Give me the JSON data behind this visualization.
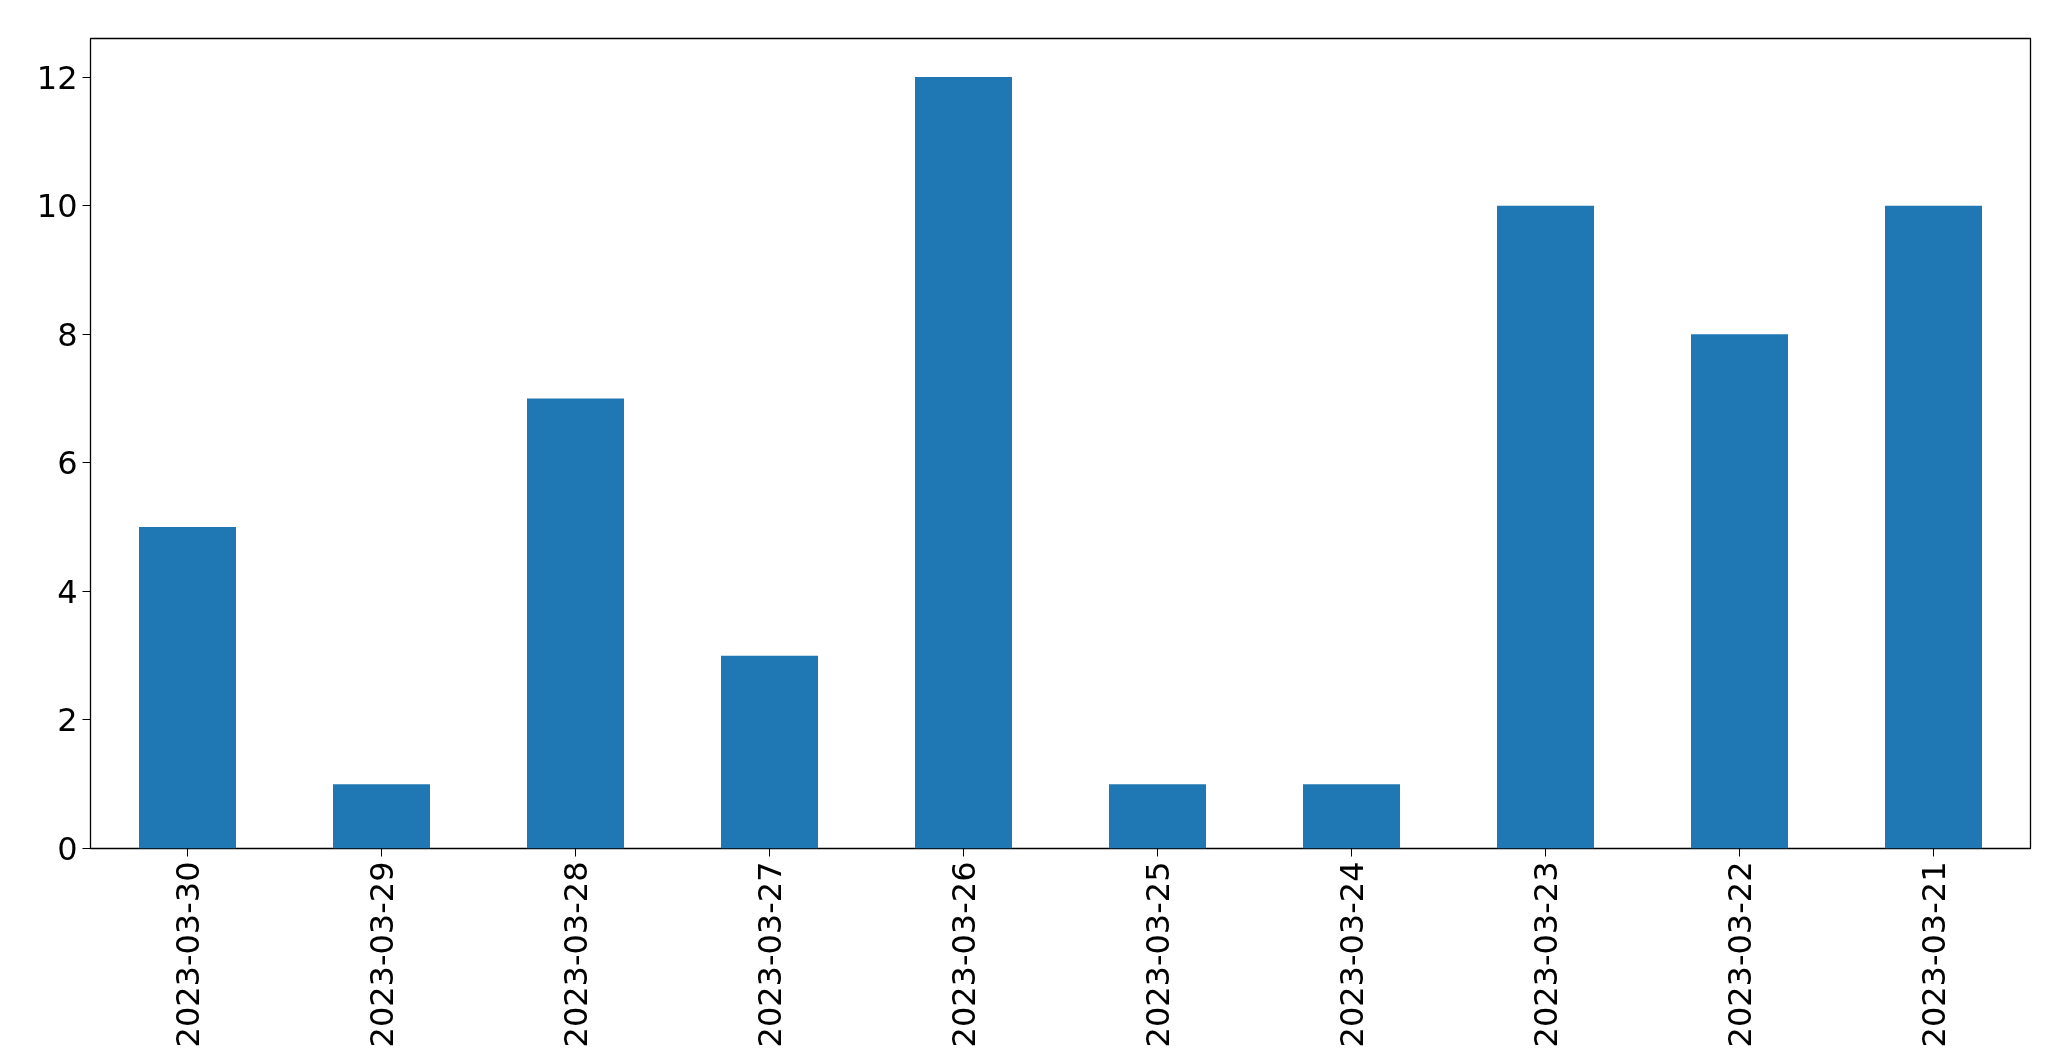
{
  "chart_data": {
    "type": "bar",
    "categories": [
      "2023-03-30",
      "2023-03-29",
      "2023-03-28",
      "2023-03-27",
      "2023-03-26",
      "2023-03-25",
      "2023-03-24",
      "2023-03-23",
      "2023-03-22",
      "2023-03-21"
    ],
    "values": [
      5,
      1,
      7,
      3,
      12,
      1,
      1,
      10,
      8,
      10
    ],
    "color": "#1f77b4",
    "ylim": [
      0,
      12.6
    ],
    "yticks": [
      0,
      2,
      4,
      6,
      8,
      10,
      12
    ],
    "grid": false
  }
}
